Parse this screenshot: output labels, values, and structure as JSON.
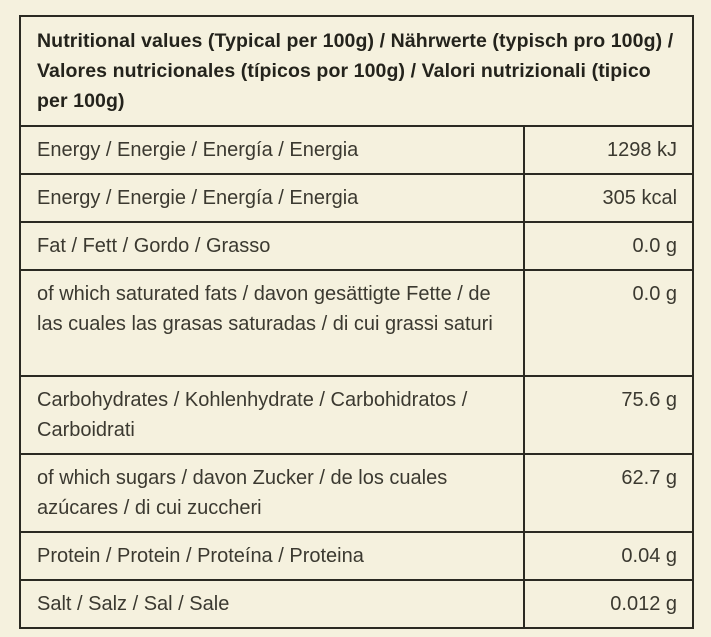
{
  "page": {
    "background_color": "#f5f1de",
    "border_color": "#2b2a22",
    "header_text_color": "#24231c",
    "body_text_color": "#3b3930"
  },
  "table": {
    "header": "Nutritional values (Typical per 100g) / Nährwerte (typisch pro 100g) / Valores nutricionales (típicos por 100g) / Valori nutrizionali (tipico per 100g)",
    "rows": [
      {
        "label": "Energy / Energie / Energía / Energia",
        "value": "1298 kJ"
      },
      {
        "label": "Energy / Energie / Energía / Energia",
        "value": "305 kcal"
      },
      {
        "label": "Fat / Fett / Gordo / Grasso",
        "value": "0.0 g"
      },
      {
        "label": "of which saturated fats / davon gesättigte Fette / de las cuales las grasas saturadas / di cui grassi saturi",
        "value": "0.0 g"
      },
      {
        "label": "Carbohydrates / Kohlenhydrate / Carbohidratos / Carboidrati",
        "value": "75.6 g"
      },
      {
        "label": "of which sugars / davon Zucker / de los cuales azúcares / di cui zuccheri",
        "value": "62.7 g"
      },
      {
        "label": "Protein / Protein / Proteína / Proteina",
        "value": "0.04 g"
      },
      {
        "label": "Salt / Salz / Sal / Sale",
        "value": "0.012 g"
      }
    ]
  }
}
